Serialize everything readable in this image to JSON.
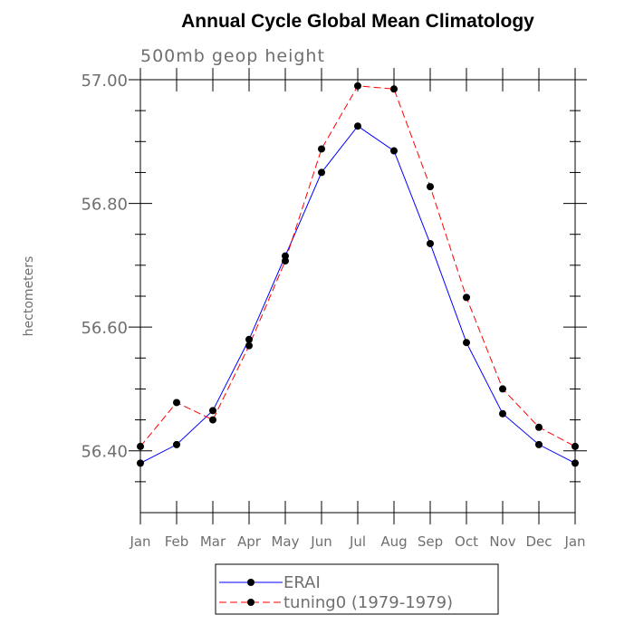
{
  "chart_data": {
    "type": "line",
    "title": "Annual Cycle Global Mean Climatology",
    "subtitle": "500mb geop height",
    "xlabel": "",
    "ylabel": "hectometers",
    "categories": [
      "Jan",
      "Feb",
      "Mar",
      "Apr",
      "May",
      "Jun",
      "Jul",
      "Aug",
      "Sep",
      "Oct",
      "Nov",
      "Dec",
      "Jan"
    ],
    "ylim": [
      56.3,
      57.0
    ],
    "yticks": [
      56.4,
      56.6,
      56.8,
      57.0
    ],
    "ytick_labels": [
      "56.40",
      "56.60",
      "56.80",
      "57.00"
    ],
    "y_minor_step": 0.05,
    "grid": false,
    "legend_position": "bottom-center",
    "series": [
      {
        "name": "ERAI",
        "color": "#0000ff",
        "dash": "solid",
        "values": [
          56.38,
          56.41,
          56.465,
          56.58,
          56.715,
          56.85,
          56.925,
          56.885,
          56.735,
          56.575,
          56.46,
          56.41,
          56.38
        ]
      },
      {
        "name": "tuning0 (1979-1979)",
        "color": "#ff0000",
        "dash": "dashed",
        "values": [
          56.407,
          56.478,
          56.45,
          56.57,
          56.707,
          56.888,
          56.99,
          56.985,
          56.827,
          56.648,
          56.5,
          56.438,
          56.407
        ]
      }
    ]
  }
}
